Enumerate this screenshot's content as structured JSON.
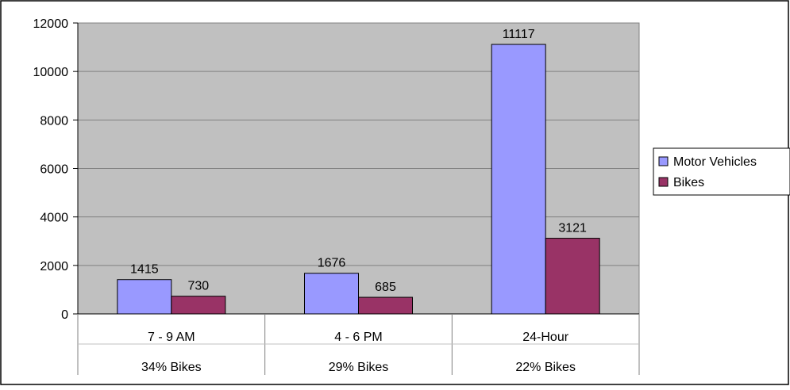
{
  "chart_data": {
    "type": "bar",
    "categories": [
      "7 - 9 AM",
      "4 - 6 PM",
      "24-Hour"
    ],
    "category_sublabels": [
      "34% Bikes",
      "29% Bikes",
      "22% Bikes"
    ],
    "series": [
      {
        "name": "Motor Vehicles",
        "values": [
          1415,
          1676,
          11117
        ],
        "color": "#9999ff"
      },
      {
        "name": "Bikes",
        "values": [
          730,
          685,
          3121
        ],
        "color": "#993366"
      }
    ],
    "ylim": [
      0,
      12000
    ],
    "yticks": [
      0,
      2000,
      4000,
      6000,
      8000,
      10000,
      12000
    ],
    "data_labels": true,
    "grid": true,
    "legend_position": "right",
    "plot_background": "#c0c0c0"
  }
}
